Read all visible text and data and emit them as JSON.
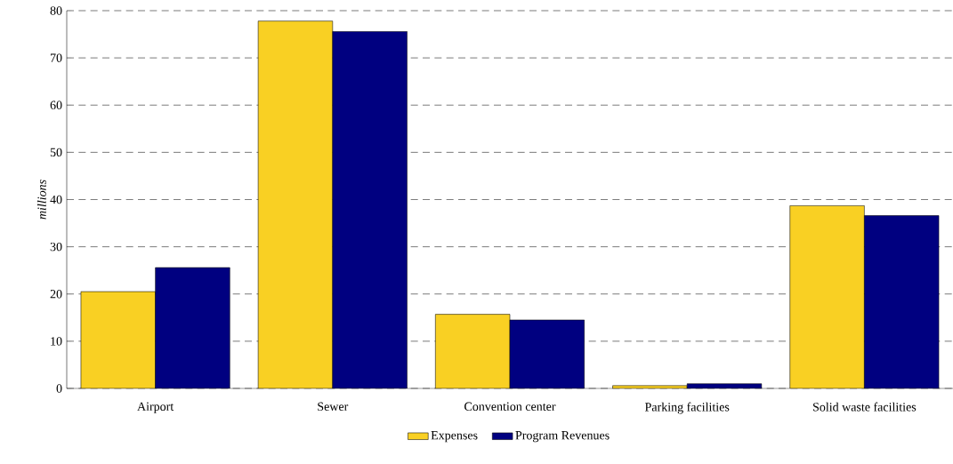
{
  "chart_data": {
    "type": "bar",
    "ylabel": "millions",
    "categories": [
      "Airport",
      "Sewer",
      "Convention center",
      "Parking facilities",
      "Solid waste facilities"
    ],
    "series": [
      {
        "name": "Expenses",
        "color": "#f9d023",
        "values": [
          20.5,
          77.8,
          15.7,
          0.6,
          38.7
        ]
      },
      {
        "name": "Program Revenues",
        "color": "#000080",
        "values": [
          25.6,
          75.6,
          14.5,
          1.0,
          36.6
        ]
      }
    ],
    "ylim": [
      0,
      80
    ],
    "yticks": [
      0,
      10,
      20,
      30,
      40,
      50,
      60,
      70,
      80
    ],
    "grid": "y",
    "legend": "bottom"
  }
}
